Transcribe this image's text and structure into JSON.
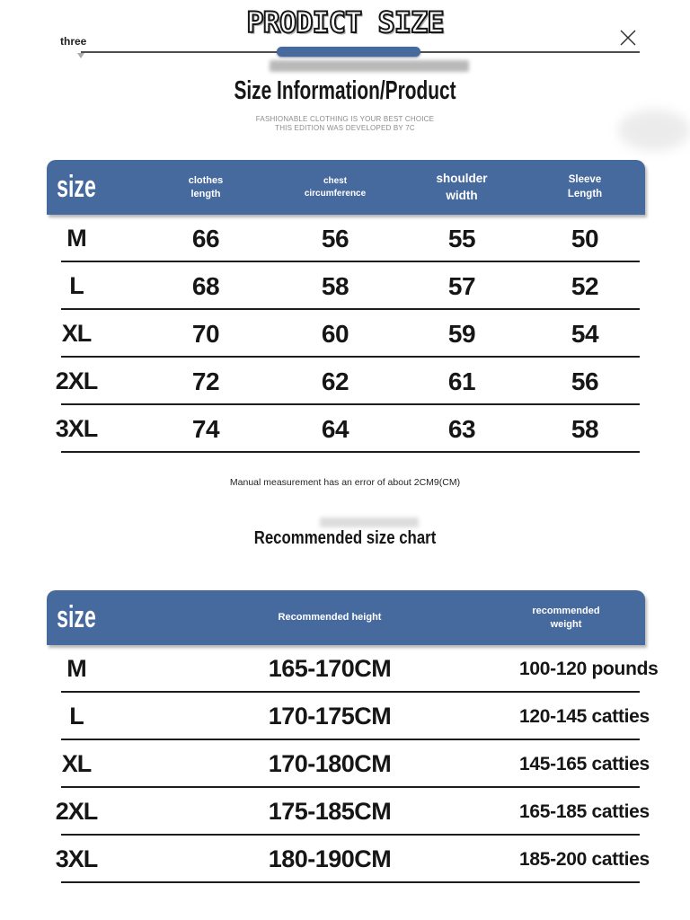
{
  "header": {
    "brand_title": "PRODICT SIZE",
    "tab_label": "three"
  },
  "intro": {
    "title": "Size Information/Product",
    "tagline_line1": "FASHIONABLE CLOTHING IS YOUR BEST CHOICE",
    "tagline_line2": "THIS EDITION WAS DEVELOPED BY 7C"
  },
  "size_table": {
    "columns": [
      "size",
      "clothes length",
      "chest circumference",
      "shoulder width",
      "Sleeve Length"
    ],
    "rows": [
      [
        "M",
        "66",
        "56",
        "55",
        "50"
      ],
      [
        "L",
        "68",
        "58",
        "57",
        "52"
      ],
      [
        "XL",
        "70",
        "60",
        "59",
        "54"
      ],
      [
        "2XL",
        "72",
        "62",
        "61",
        "56"
      ],
      [
        "3XL",
        "74",
        "64",
        "63",
        "58"
      ]
    ]
  },
  "note": "Manual measurement has an error of about 2CM9(CM)",
  "recommended_table": {
    "title": "Recommended size chart",
    "columns": [
      "size",
      "Recommended height",
      "recommended weight"
    ],
    "rows": [
      [
        "M",
        "165-170CM",
        "100-120 pounds"
      ],
      [
        "L",
        "170-175CM",
        "120-145 catties"
      ],
      [
        "XL",
        "170-180CM",
        "145-165 catties"
      ],
      [
        "2XL",
        "175-185CM",
        "165-185 catties"
      ],
      [
        "3XL",
        "180-190CM",
        "185-200 catties"
      ]
    ]
  },
  "colors": {
    "accent_blue": "#46699e"
  }
}
